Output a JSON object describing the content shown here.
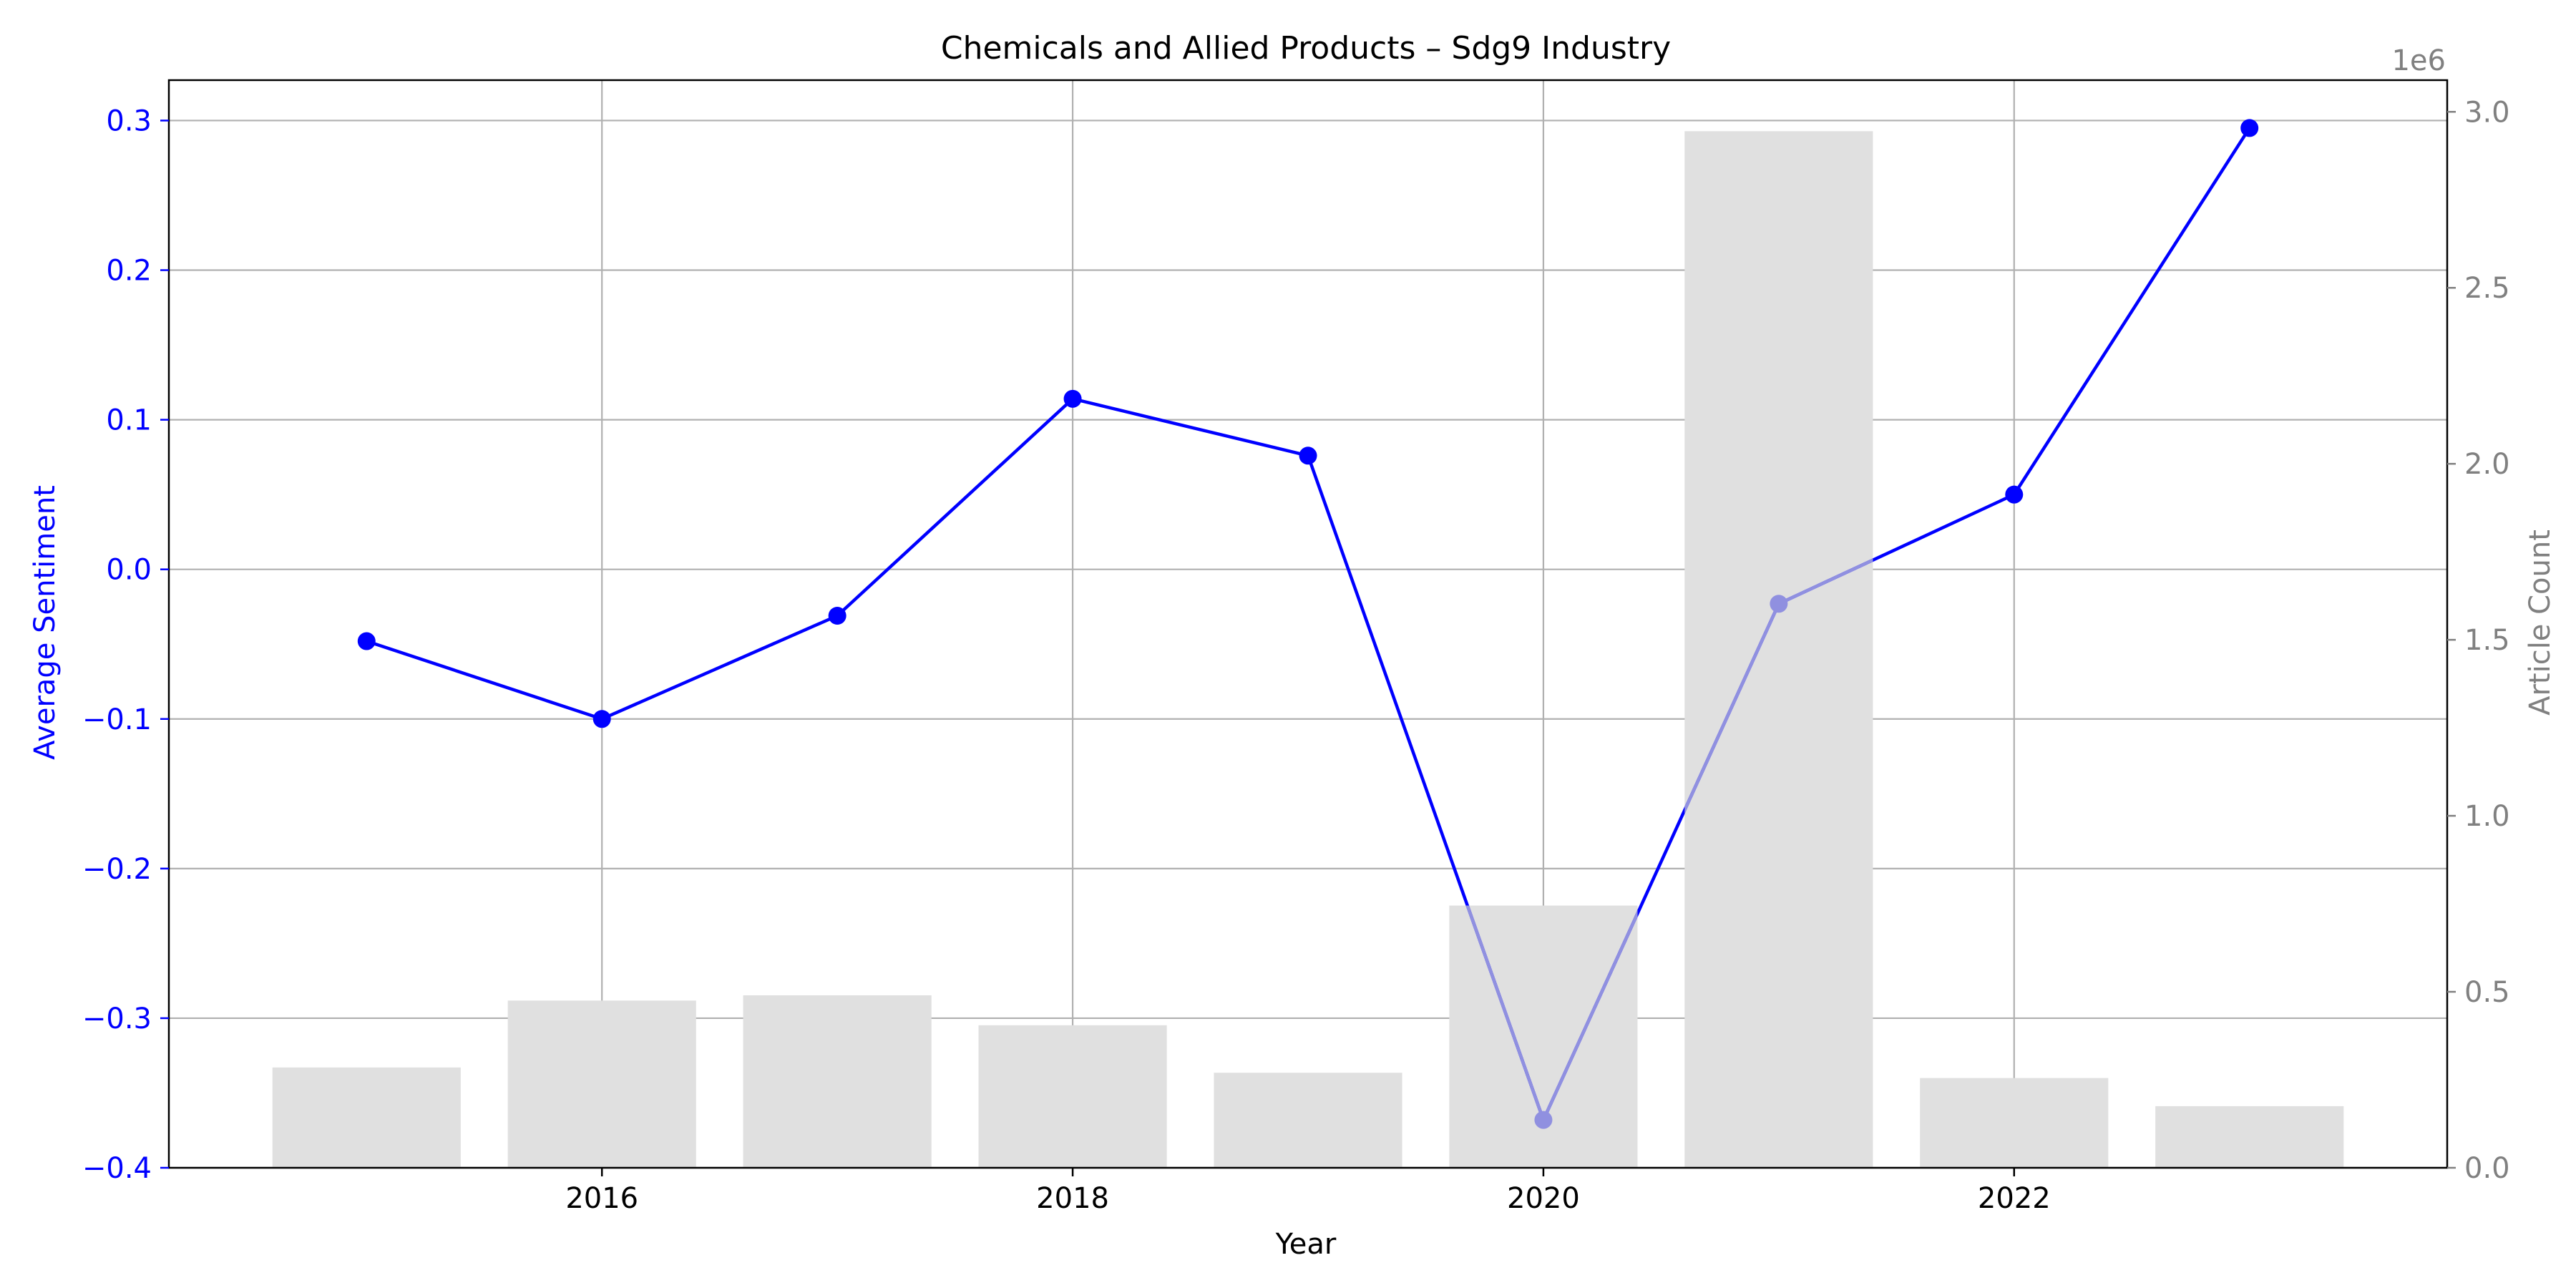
{
  "chart_data": {
    "type": "bar+line",
    "title": "Chemicals and Allied Products – Sdg9 Industry",
    "xlabel": "Year",
    "ylabel_left": "Average Sentiment",
    "ylabel_right": "Article Count",
    "right_axis_multiplier": "1e6",
    "x": [
      2015,
      2016,
      2017,
      2018,
      2019,
      2020,
      2021,
      2022,
      2023
    ],
    "x_ticks": [
      2016,
      2018,
      2020,
      2022
    ],
    "x_tick_labels": [
      "2016",
      "2018",
      "2020",
      "2022"
    ],
    "xlim": [
      2014.16,
      2023.84
    ],
    "ylim_left": [
      -0.4,
      0.327
    ],
    "ylim_right": [
      0,
      3.09
    ],
    "y_ticks_left": [
      -0.4,
      -0.3,
      -0.2,
      -0.1,
      0.0,
      0.1,
      0.2,
      0.3
    ],
    "y_tick_labels_left": [
      "−0.4",
      "−0.3",
      "−0.2",
      "−0.1",
      "0.0",
      "0.1",
      "0.2",
      "0.3"
    ],
    "y_ticks_right": [
      0.0,
      0.5,
      1.0,
      1.5,
      2.0,
      2.5,
      3.0
    ],
    "y_tick_labels_right": [
      "0.0",
      "0.5",
      "1.0",
      "1.5",
      "2.0",
      "2.5",
      "3.0"
    ],
    "bars": {
      "values": [
        0.285,
        0.475,
        0.49,
        0.405,
        0.27,
        0.745,
        2.945,
        0.255,
        0.175
      ],
      "color": "#e0e0e0"
    },
    "series": [
      {
        "values": [
          -0.048,
          -0.1,
          -0.031,
          0.114,
          0.076,
          -0.368,
          -0.023,
          0.05,
          0.295
        ],
        "color": "#0000ff",
        "hidden_color": "#9090e0"
      }
    ],
    "grid": true,
    "left_axis_color": "#0000ff",
    "right_axis_color": "#808080"
  }
}
